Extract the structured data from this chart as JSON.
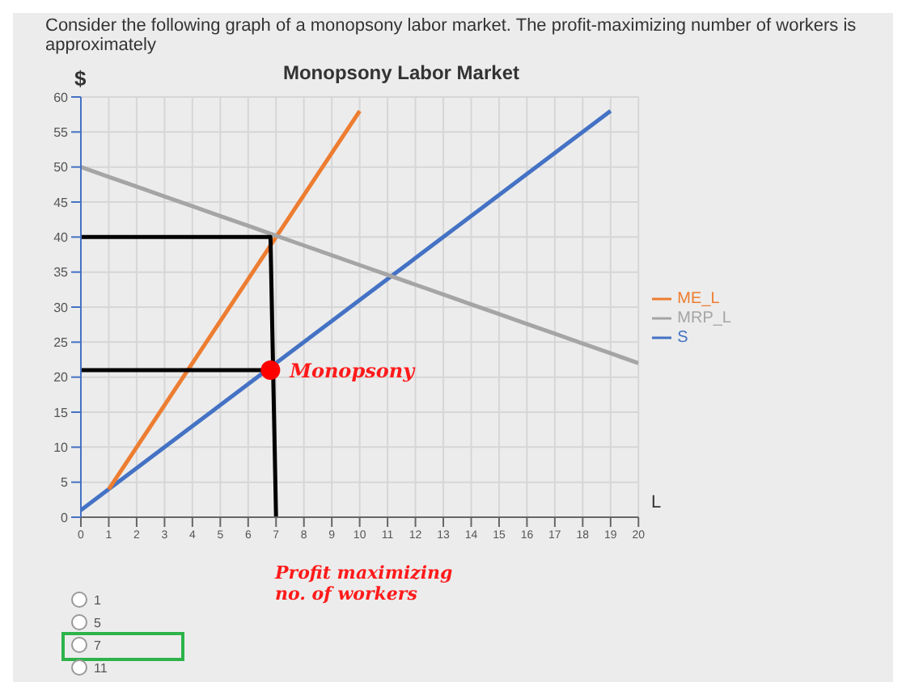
{
  "chart_data": {
    "type": "line",
    "title": "Monopsony Labor Market",
    "xlabel": "L",
    "ylabel": "$",
    "xlim": [
      0,
      20
    ],
    "xticks": [
      0,
      1,
      2,
      3,
      4,
      5,
      6,
      7,
      8,
      9,
      10,
      11,
      12,
      13,
      14,
      15,
      16,
      17,
      18,
      19,
      20
    ],
    "ylim": [
      0,
      60
    ],
    "yticks": [
      0,
      5,
      10,
      15,
      20,
      25,
      30,
      35,
      40,
      45,
      50,
      55,
      60
    ],
    "grid": true,
    "legend": "right",
    "marker": "none",
    "line_style": "solid",
    "series": [
      {
        "name": "S",
        "color": "#4472c4",
        "x": [
          0,
          1,
          2,
          3,
          4,
          5,
          6,
          7,
          8,
          9,
          10,
          11,
          12,
          13,
          14,
          15,
          16,
          17,
          18,
          19
        ],
        "values": [
          1,
          4,
          7,
          10,
          13,
          16,
          19,
          22,
          25,
          28,
          31,
          34,
          37,
          40,
          43,
          46,
          49,
          52,
          55,
          58
        ]
      },
      {
        "name": "ME_L",
        "color": "#ed7d31",
        "x": [
          1,
          2,
          3,
          4,
          5,
          6,
          7,
          8,
          9,
          10
        ],
        "values": [
          4,
          10,
          16,
          22,
          28,
          34,
          40,
          46,
          52,
          58
        ]
      },
      {
        "name": "MRP_L",
        "color": "#a5a5a5",
        "x": [
          0,
          1,
          2,
          3,
          4,
          5,
          6,
          7,
          8,
          9,
          10,
          11,
          12,
          13,
          14,
          15,
          16,
          17,
          18,
          19,
          20
        ],
        "values": [
          50,
          48.6,
          47.2,
          45.8,
          44.4,
          43,
          41.6,
          40.2,
          38.8,
          37.4,
          36,
          34.6,
          33.2,
          31.8,
          30.4,
          29,
          27.6,
          26.2,
          24.8,
          23.4,
          22
        ]
      },
      {
        "color": "#000000",
        "x": [
          0,
          6.8,
          7
        ],
        "values": [
          40,
          40,
          0
        ]
      },
      {
        "color": "#000000",
        "x": [
          0,
          6.5
        ],
        "values": [
          21,
          21
        ]
      },
      {
        "type": "scatter",
        "marker": "circle",
        "color": "#ff0000",
        "x": [
          6.8
        ],
        "values": [
          21
        ]
      }
    ],
    "annotations": [
      "Consider the following graph of a monopsony labor market. The profit-maximizing number of workers is approximately",
      {
        "text": "Monopsony",
        "x": 6.8,
        "y": 21
      },
      "Profit maximizing no. of workers",
      "1",
      "5",
      "7",
      "11"
    ]
  }
}
